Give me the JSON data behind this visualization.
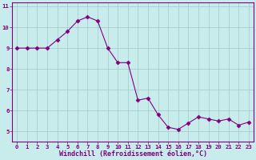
{
  "x": [
    0,
    1,
    2,
    3,
    4,
    5,
    6,
    7,
    8,
    9,
    10,
    11,
    12,
    13,
    14,
    15,
    16,
    17,
    18,
    19,
    20,
    21,
    22,
    23
  ],
  "y": [
    9.0,
    9.0,
    9.0,
    9.0,
    9.4,
    9.8,
    10.3,
    10.5,
    10.3,
    9.0,
    8.3,
    8.3,
    6.5,
    6.6,
    5.8,
    5.2,
    5.1,
    5.4,
    5.7,
    5.6,
    5.5,
    5.6,
    5.3,
    5.45
  ],
  "line_color": "#800080",
  "marker": "D",
  "marker_size": 2.5,
  "bg_color": "#c8ecec",
  "grid_color": "#a0c8c8",
  "xlabel": "Windchill (Refroidissement éolien,°C)",
  "xlabel_color": "#800080",
  "tick_color": "#800080",
  "spine_color": "#800080",
  "bottom_band_color": "#9060a0",
  "ylim": [
    4.5,
    11.2
  ],
  "xlim": [
    -0.5,
    23.5
  ],
  "yticks": [
    5,
    6,
    7,
    8,
    9,
    10,
    11
  ],
  "xticks": [
    0,
    1,
    2,
    3,
    4,
    5,
    6,
    7,
    8,
    9,
    10,
    11,
    12,
    13,
    14,
    15,
    16,
    17,
    18,
    19,
    20,
    21,
    22,
    23
  ],
  "font_family": "monospace",
  "tick_fontsize": 5.2,
  "ylabel_fontsize": 5.5,
  "xlabel_fontsize": 6.0
}
